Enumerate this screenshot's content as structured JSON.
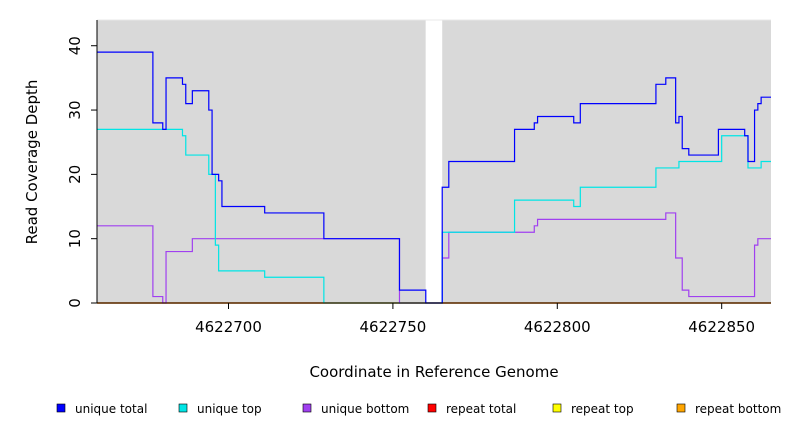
{
  "chart_data": {
    "type": "line",
    "title": "",
    "xlabel": "Coordinate in Reference Genome",
    "ylabel": "Read Coverage Depth",
    "xlim": [
      4622660,
      4622865
    ],
    "ylim": [
      0,
      44
    ],
    "xticks": [
      4622700,
      4622750,
      4622800,
      4622850
    ],
    "yticks": [
      0,
      10,
      20,
      30,
      40
    ],
    "grid": false,
    "legend_position": "bottom",
    "background": "#d9d9d9",
    "gap": [
      4622760,
      4622765
    ],
    "series": [
      {
        "name": "unique total",
        "color": "#0000ff",
        "points": [
          [
            4622660,
            39
          ],
          [
            4622677,
            39
          ],
          [
            4622677,
            28
          ],
          [
            4622680,
            28
          ],
          [
            4622680,
            27
          ],
          [
            4622681,
            27
          ],
          [
            4622681,
            35
          ],
          [
            4622686,
            35
          ],
          [
            4622686,
            34
          ],
          [
            4622687,
            34
          ],
          [
            4622687,
            31
          ],
          [
            4622689,
            31
          ],
          [
            4622689,
            33
          ],
          [
            4622694,
            33
          ],
          [
            4622694,
            30
          ],
          [
            4622695,
            30
          ],
          [
            4622695,
            20
          ],
          [
            4622697,
            20
          ],
          [
            4622697,
            19
          ],
          [
            4622698,
            19
          ],
          [
            4622698,
            15
          ],
          [
            4622711,
            15
          ],
          [
            4622711,
            14
          ],
          [
            4622729,
            14
          ],
          [
            4622729,
            10
          ],
          [
            4622752,
            10
          ],
          [
            4622752,
            2
          ],
          [
            4622760,
            2
          ],
          [
            4622760,
            0
          ],
          [
            4622765,
            0
          ],
          [
            4622765,
            18
          ],
          [
            4622767,
            18
          ],
          [
            4622767,
            22
          ],
          [
            4622787,
            22
          ],
          [
            4622787,
            27
          ],
          [
            4622793,
            27
          ],
          [
            4622793,
            28
          ],
          [
            4622794,
            28
          ],
          [
            4622794,
            29
          ],
          [
            4622805,
            29
          ],
          [
            4622805,
            28
          ],
          [
            4622807,
            28
          ],
          [
            4622807,
            31
          ],
          [
            4622830,
            31
          ],
          [
            4622830,
            34
          ],
          [
            4622833,
            34
          ],
          [
            4622833,
            35
          ],
          [
            4622836,
            35
          ],
          [
            4622836,
            28
          ],
          [
            4622837,
            28
          ],
          [
            4622837,
            29
          ],
          [
            4622838,
            29
          ],
          [
            4622838,
            24
          ],
          [
            4622840,
            24
          ],
          [
            4622840,
            23
          ],
          [
            4622849,
            23
          ],
          [
            4622849,
            27
          ],
          [
            4622857,
            27
          ],
          [
            4622857,
            26
          ],
          [
            4622858,
            26
          ],
          [
            4622858,
            22
          ],
          [
            4622860,
            22
          ],
          [
            4622860,
            30
          ],
          [
            4622861,
            30
          ],
          [
            4622861,
            31
          ],
          [
            4622862,
            31
          ],
          [
            4622862,
            32
          ],
          [
            4622865,
            32
          ]
        ]
      },
      {
        "name": "unique top",
        "color": "#00e5e5",
        "points": [
          [
            4622660,
            27
          ],
          [
            4622686,
            27
          ],
          [
            4622686,
            26
          ],
          [
            4622687,
            26
          ],
          [
            4622687,
            23
          ],
          [
            4622694,
            23
          ],
          [
            4622694,
            20
          ],
          [
            4622696,
            20
          ],
          [
            4622696,
            9
          ],
          [
            4622697,
            9
          ],
          [
            4622697,
            5
          ],
          [
            4622711,
            5
          ],
          [
            4622711,
            4
          ],
          [
            4622729,
            4
          ],
          [
            4622729,
            0
          ],
          [
            4622760,
            0
          ],
          [
            4622765,
            0
          ],
          [
            4622765,
            11
          ],
          [
            4622787,
            11
          ],
          [
            4622787,
            16
          ],
          [
            4622805,
            16
          ],
          [
            4622805,
            15
          ],
          [
            4622807,
            15
          ],
          [
            4622807,
            18
          ],
          [
            4622830,
            18
          ],
          [
            4622830,
            21
          ],
          [
            4622837,
            21
          ],
          [
            4622837,
            22
          ],
          [
            4622850,
            22
          ],
          [
            4622850,
            26
          ],
          [
            4622858,
            26
          ],
          [
            4622858,
            21
          ],
          [
            4622862,
            21
          ],
          [
            4622862,
            22
          ],
          [
            4622865,
            22
          ]
        ]
      },
      {
        "name": "unique bottom",
        "color": "#a040f0",
        "points": [
          [
            4622660,
            12
          ],
          [
            4622677,
            12
          ],
          [
            4622677,
            1
          ],
          [
            4622680,
            1
          ],
          [
            4622680,
            0
          ],
          [
            4622681,
            0
          ],
          [
            4622681,
            8
          ],
          [
            4622689,
            8
          ],
          [
            4622689,
            10
          ],
          [
            4622752,
            10
          ],
          [
            4622752,
            0
          ],
          [
            4622760,
            0
          ],
          [
            4622765,
            0
          ],
          [
            4622765,
            7
          ],
          [
            4622767,
            7
          ],
          [
            4622767,
            11
          ],
          [
            4622793,
            11
          ],
          [
            4622793,
            12
          ],
          [
            4622794,
            12
          ],
          [
            4622794,
            13
          ],
          [
            4622833,
            13
          ],
          [
            4622833,
            14
          ],
          [
            4622836,
            14
          ],
          [
            4622836,
            7
          ],
          [
            4622838,
            7
          ],
          [
            4622838,
            2
          ],
          [
            4622840,
            2
          ],
          [
            4622840,
            1
          ],
          [
            4622860,
            1
          ],
          [
            4622860,
            9
          ],
          [
            4622861,
            9
          ],
          [
            4622861,
            10
          ],
          [
            4622865,
            10
          ]
        ]
      },
      {
        "name": "repeat total",
        "color": "#ff0000",
        "points": [
          [
            4622660,
            0
          ],
          [
            4622865,
            0
          ]
        ]
      },
      {
        "name": "repeat top",
        "color": "#ffff00",
        "points": [
          [
            4622660,
            0
          ],
          [
            4622865,
            0
          ]
        ]
      },
      {
        "name": "repeat bottom",
        "color": "#ffa500",
        "points": [
          [
            4622660,
            0
          ],
          [
            4622865,
            0
          ]
        ]
      }
    ]
  }
}
